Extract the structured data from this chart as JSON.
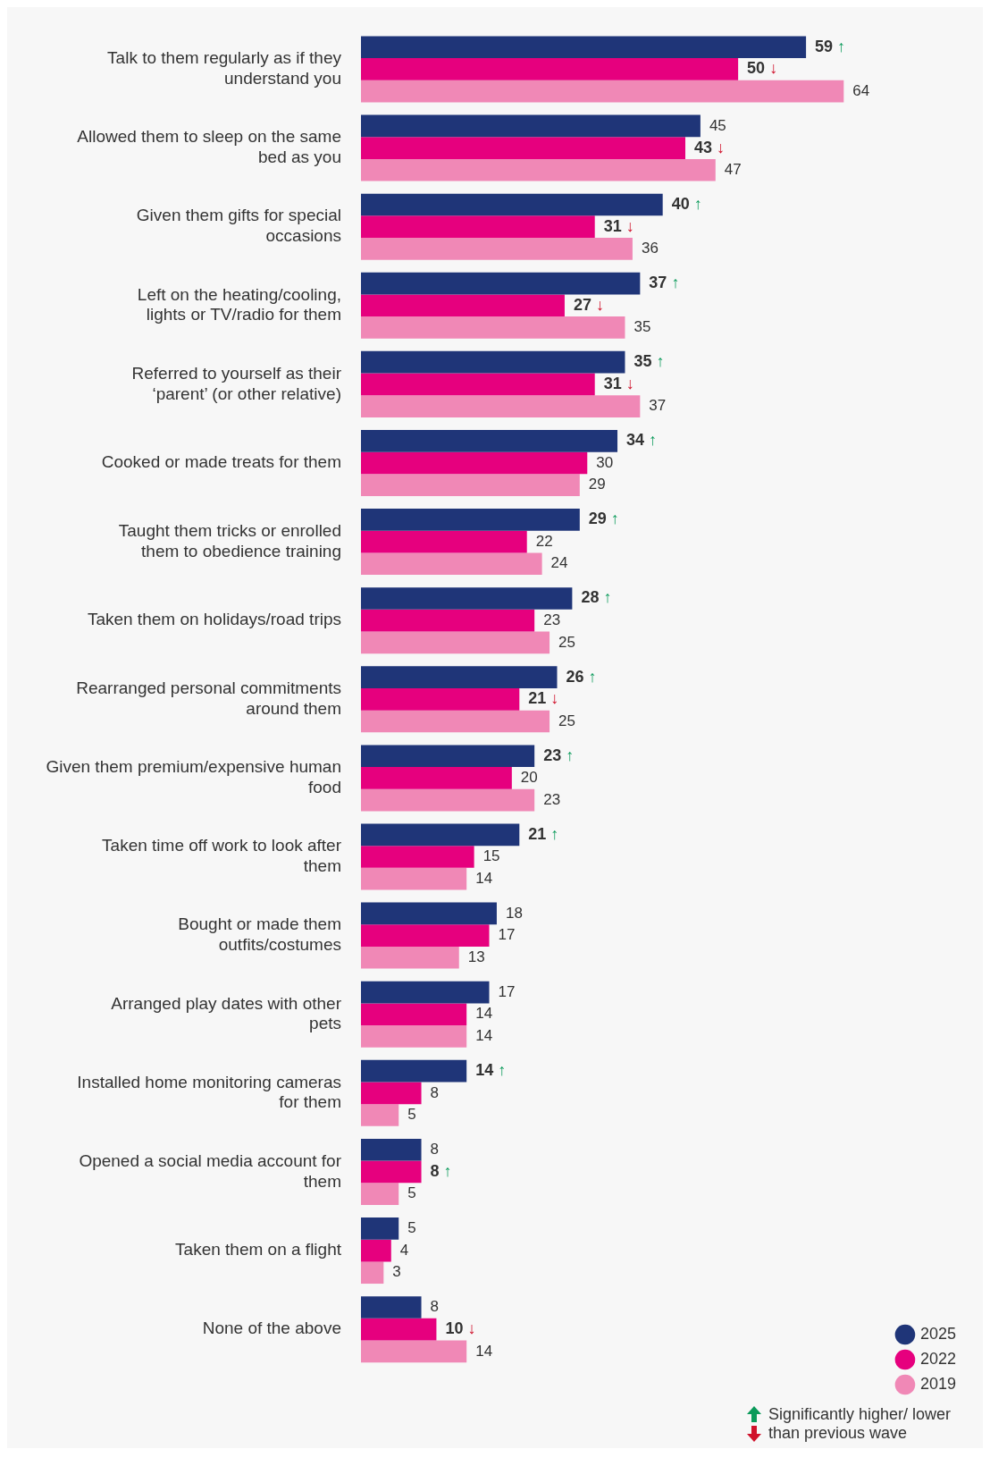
{
  "chart_data": {
    "type": "bar",
    "orientation": "horizontal",
    "tick_labels": "y",
    "legend": "bottom right",
    "categories": [
      "Talk to them regularly as if they understand you",
      "Allowed them to sleep on the same bed as you",
      "Given them gifts for special occasions",
      "Left on the heating/cooling, lights or TV/radio for them",
      "Referred to yourself as their ‘parent’ (or other relative)",
      "Cooked or made treats for them",
      "Taught them tricks or enrolled them to obedience training",
      "Taken them on holidays/road trips",
      "Rearranged personal commitments around them",
      "Given them premium/expensive human food",
      "Taken time off work to look after them",
      "Bought or made them outfits/costumes",
      "Arranged play dates with other pets",
      "Installed home monitoring cameras for them",
      "Opened a social media account for them",
      "Taken them on a flight",
      "None of the above"
    ],
    "series": [
      {
        "name": "2025",
        "color": "#1f3578",
        "values": [
          59,
          45,
          40,
          37,
          35,
          34,
          29,
          28,
          26,
          23,
          21,
          18,
          17,
          14,
          8,
          5,
          8
        ],
        "value_labels": [
          "59 ↑",
          "45",
          "40 ↑",
          "37 ↑",
          "35 ↑",
          "34 ↑",
          "29 ↑",
          "28 ↑",
          "26 ↑",
          "23 ↑",
          "21 ↑",
          "18",
          "17",
          "14 ↑",
          "8",
          "5",
          "8"
        ]
      },
      {
        "name": "2022",
        "color": "#e6007e",
        "values": [
          50,
          43,
          31,
          27,
          31,
          30,
          22,
          23,
          21,
          20,
          15,
          17,
          14,
          8,
          8,
          4,
          10
        ],
        "value_labels": [
          "50 ↓",
          "43 ↓",
          "31 ↓",
          "27 ↓",
          "31 ↓",
          "30",
          "22",
          "23",
          "21 ↓",
          "20",
          "15",
          "17",
          "14",
          "8",
          "8 ↑",
          "4",
          "10 ↓"
        ]
      },
      {
        "name": "2019",
        "color": "#f088b6",
        "values": [
          64,
          47,
          36,
          35,
          37,
          29,
          24,
          25,
          25,
          23,
          14,
          13,
          14,
          5,
          5,
          3,
          14
        ],
        "value_labels": [
          "64",
          "47",
          "36",
          "35",
          "37",
          "29",
          "24",
          "25",
          "25",
          "23",
          "14",
          "13",
          "14",
          "5",
          "5",
          "3",
          "14"
        ]
      }
    ],
    "annotations": [
      "Significantly higher/ lower than previous wave"
    ]
  }
}
